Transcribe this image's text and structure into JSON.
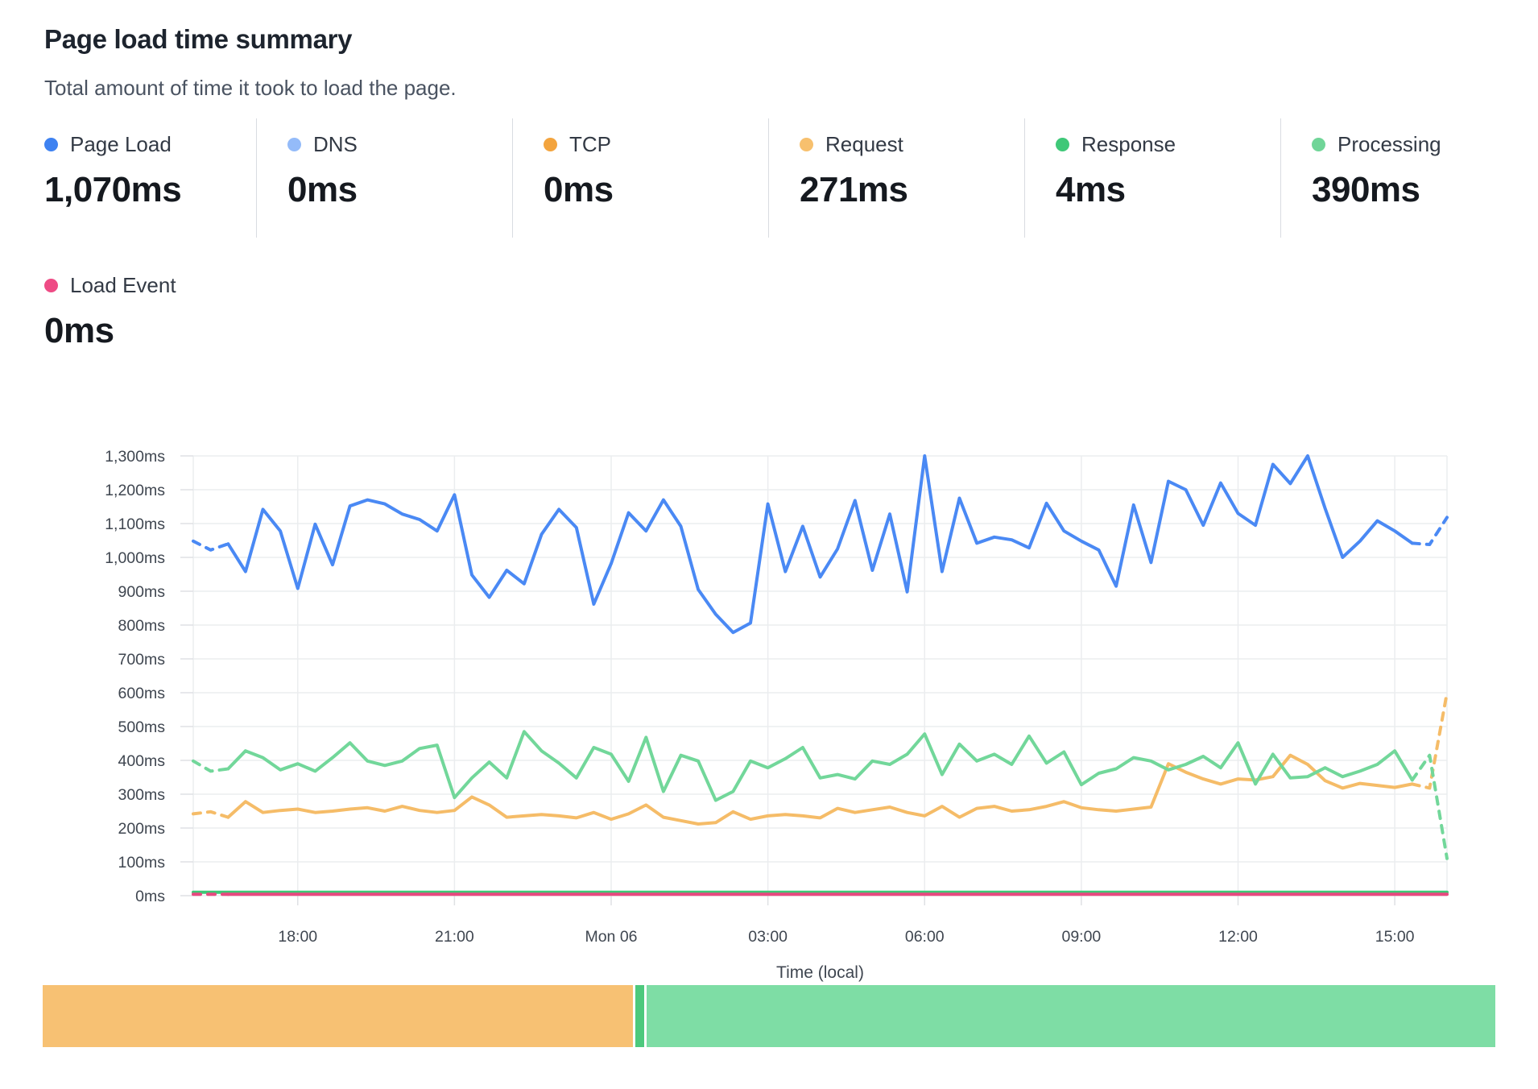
{
  "header": {
    "title": "Page load time summary",
    "subtitle": "Total amount of time it took to load the page."
  },
  "metrics": [
    {
      "label": "Page Load",
      "value": "1,070ms",
      "color": "#3e82f1"
    },
    {
      "label": "DNS",
      "value": "0ms",
      "color": "#94bbf9"
    },
    {
      "label": "TCP",
      "value": "0ms",
      "color": "#f3a43e"
    },
    {
      "label": "Request",
      "value": "271ms",
      "color": "#f7c06e"
    },
    {
      "label": "Response",
      "value": "4ms",
      "color": "#3fc878"
    },
    {
      "label": "Processing",
      "value": "390ms",
      "color": "#70d598"
    }
  ],
  "metrics_row2": [
    {
      "label": "Load Event",
      "value": "0ms",
      "color": "#ee4b85"
    }
  ],
  "chart_data": {
    "type": "line",
    "title": "Page load time summary",
    "xlabel": "Time (local)",
    "ylabel": "",
    "ylim": [
      0,
      1300
    ],
    "grid": true,
    "legend_position": "none",
    "y_ticks": [
      {
        "v": 0,
        "label": "0ms"
      },
      {
        "v": 100,
        "label": "100ms"
      },
      {
        "v": 200,
        "label": "200ms"
      },
      {
        "v": 300,
        "label": "300ms"
      },
      {
        "v": 400,
        "label": "400ms"
      },
      {
        "v": 500,
        "label": "500ms"
      },
      {
        "v": 600,
        "label": "600ms"
      },
      {
        "v": 700,
        "label": "700ms"
      },
      {
        "v": 800,
        "label": "800ms"
      },
      {
        "v": 900,
        "label": "900ms"
      },
      {
        "v": 1000,
        "label": "1,000ms"
      },
      {
        "v": 1100,
        "label": "1,100ms"
      },
      {
        "v": 1200,
        "label": "1,200ms"
      },
      {
        "v": 1300,
        "label": "1,300ms"
      }
    ],
    "n_points": 73,
    "x_ticks": [
      {
        "index": 6,
        "label": "18:00"
      },
      {
        "index": 15,
        "label": "21:00"
      },
      {
        "index": 24,
        "label": "Mon 06"
      },
      {
        "index": 33,
        "label": "03:00"
      },
      {
        "index": 42,
        "label": "06:00"
      },
      {
        "index": 51,
        "label": "09:00"
      },
      {
        "index": 60,
        "label": "12:00"
      },
      {
        "index": 69,
        "label": "15:00"
      }
    ],
    "series": [
      {
        "name": "Page Load",
        "color": "#4a89f4",
        "width": 4,
        "dash_head": 2,
        "dash_tail": 2,
        "values": [
          1048,
          1022,
          1040,
          958,
          1142,
          1078,
          908,
          1098,
          978,
          1152,
          1170,
          1158,
          1128,
          1112,
          1078,
          1185,
          948,
          882,
          962,
          922,
          1068,
          1142,
          1088,
          862,
          982,
          1132,
          1078,
          1170,
          1092,
          905,
          832,
          778,
          806,
          1158,
          958,
          1092,
          942,
          1025,
          1168,
          962,
          1128,
          898,
          1300,
          958,
          1175,
          1042,
          1060,
          1052,
          1028,
          1160,
          1078,
          1048,
          1022,
          915,
          1155,
          985,
          1225,
          1200,
          1095,
          1220,
          1130,
          1095,
          1275,
          1218,
          1300,
          1145,
          1000,
          1048,
          1108,
          1078,
          1042,
          1038,
          1118
        ]
      },
      {
        "name": "Request",
        "color": "#f5bc68",
        "width": 4,
        "dash_head": 2,
        "dash_tail": 2,
        "values": [
          242,
          248,
          232,
          278,
          246,
          252,
          256,
          246,
          250,
          256,
          260,
          250,
          264,
          252,
          246,
          252,
          292,
          268,
          232,
          236,
          240,
          236,
          230,
          246,
          226,
          242,
          268,
          232,
          222,
          212,
          216,
          248,
          226,
          236,
          240,
          236,
          230,
          258,
          246,
          254,
          262,
          246,
          236,
          264,
          232,
          258,
          264,
          250,
          254,
          264,
          278,
          260,
          254,
          250,
          256,
          262,
          390,
          365,
          345,
          330,
          345,
          342,
          352,
          415,
          388,
          340,
          318,
          332,
          326,
          320,
          330,
          318,
          600
        ]
      },
      {
        "name": "Processing",
        "color": "#72d79a",
        "width": 4,
        "dash_head": 2,
        "dash_tail": 2,
        "values": [
          398,
          368,
          375,
          428,
          408,
          372,
          390,
          368,
          408,
          452,
          398,
          385,
          398,
          435,
          445,
          290,
          348,
          395,
          348,
          485,
          428,
          392,
          348,
          438,
          418,
          338,
          468,
          308,
          415,
          398,
          282,
          308,
          398,
          378,
          405,
          438,
          348,
          358,
          345,
          398,
          388,
          418,
          478,
          358,
          448,
          398,
          418,
          388,
          472,
          392,
          425,
          328,
          362,
          375,
          408,
          398,
          372,
          388,
          412,
          378,
          452,
          330,
          418,
          348,
          352,
          378,
          352,
          368,
          388,
          428,
          342,
          415,
          110
        ]
      },
      {
        "name": "Response",
        "color": "#3dc876",
        "width": 4,
        "dash_head": 0,
        "dash_tail": 0,
        "values": [
          10,
          10,
          10,
          10,
          10,
          10,
          10,
          10,
          10,
          10,
          10,
          10,
          10,
          10,
          10,
          10,
          10,
          10,
          10,
          10,
          10,
          10,
          10,
          10,
          10,
          10,
          10,
          10,
          10,
          10,
          10,
          10,
          10,
          10,
          10,
          10,
          10,
          10,
          10,
          10,
          10,
          10,
          10,
          10,
          10,
          10,
          10,
          10,
          10,
          10,
          10,
          10,
          10,
          10,
          10,
          10,
          10,
          10,
          10,
          10,
          10,
          10,
          10,
          10,
          10,
          10,
          10,
          10,
          10,
          10,
          10,
          10,
          10
        ]
      },
      {
        "name": "Load Event",
        "color": "#e8497f",
        "width": 4,
        "dash_head": 2,
        "dash_tail": 0,
        "values": [
          4,
          4,
          4,
          4,
          4,
          4,
          4,
          4,
          4,
          4,
          4,
          4,
          4,
          4,
          4,
          4,
          4,
          4,
          4,
          4,
          4,
          4,
          4,
          4,
          4,
          4,
          4,
          4,
          4,
          4,
          4,
          4,
          4,
          4,
          4,
          4,
          4,
          4,
          4,
          4,
          4,
          4,
          4,
          4,
          4,
          4,
          4,
          4,
          4,
          4,
          4,
          4,
          4,
          4,
          4,
          4,
          4,
          4,
          4,
          4,
          4,
          4,
          4,
          4,
          4,
          4,
          4,
          4,
          4,
          4,
          4,
          4,
          4
        ]
      }
    ]
  },
  "breakdown_bar": {
    "segments": [
      {
        "name": "Request",
        "value": 271,
        "color": "#f7c173"
      },
      {
        "name": "Response",
        "value": 4,
        "color": "#4dc97d"
      },
      {
        "name": "Processing",
        "value": 390,
        "color": "#7edda5"
      }
    ]
  }
}
